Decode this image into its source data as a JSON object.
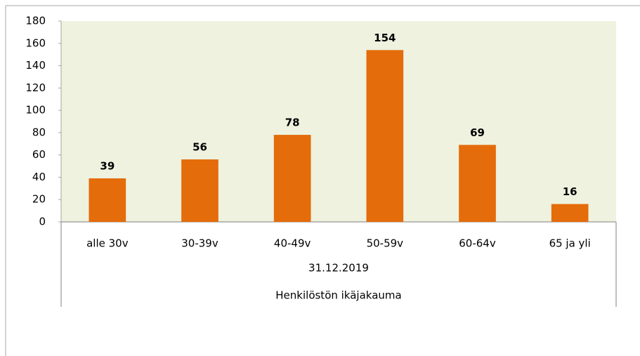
{
  "chart_data": {
    "type": "bar",
    "categories": [
      "alle 30v",
      "30-39v",
      "40-49v",
      "50-59v",
      "60-64v",
      "65 ja yli"
    ],
    "values": [
      39,
      56,
      78,
      154,
      69,
      16
    ],
    "color": "#e46c0a",
    "x_group": "31.12.2019",
    "xlabel": "Henkilöstön ikäjakauma",
    "ylim": [
      0,
      180
    ],
    "yticks": [
      0,
      20,
      40,
      60,
      80,
      100,
      120,
      140,
      160,
      180
    ],
    "grid": false,
    "plot_background": "#eef2df"
  }
}
